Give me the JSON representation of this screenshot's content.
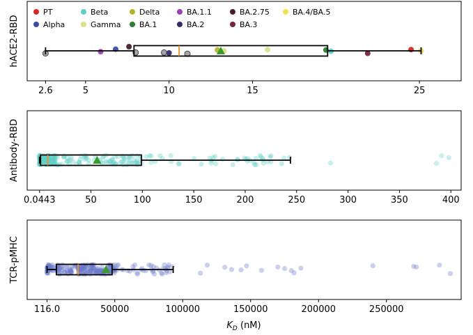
{
  "chart_data": [
    {
      "type": "boxplot-strip",
      "ylabel": "hACE2-RBD",
      "xlim": [
        1.5,
        27.5
      ],
      "xtick_values": [
        2.6,
        5,
        10,
        15,
        25
      ],
      "xtick_labels": [
        "2.6",
        "5",
        "10",
        "15",
        "25"
      ],
      "box": {
        "whisker_low": 2.6,
        "q1": 7.9,
        "median": 10.6,
        "q3": 19.5,
        "whisker_high": 25.1
      },
      "mean": 13.1,
      "legend": {
        "placement": "top-left",
        "entries": [
          {
            "label": "PT",
            "color": "#d62728"
          },
          {
            "label": "Alpha",
            "color": "#3a4fa3"
          },
          {
            "label": "Beta",
            "color": "#5ecfc7"
          },
          {
            "label": "Gamma",
            "color": "#dbe08a"
          },
          {
            "label": "Delta",
            "color": "#b5b22e"
          },
          {
            "label": "BA.1",
            "color": "#2e7d32"
          },
          {
            "label": "BA.1.1",
            "color": "#9c3fb5"
          },
          {
            "label": "BA.2",
            "color": "#3b2a6b"
          },
          {
            "label": "BA.2.75",
            "color": "#4a1f2a"
          },
          {
            "label": "BA.3",
            "color": "#7b2345"
          },
          {
            "label": "BA.4/BA.5",
            "color": "#f0e050"
          }
        ]
      },
      "points": [
        {
          "x": 2.6,
          "dy": 0.3,
          "variant": "Other"
        },
        {
          "x": 5.9,
          "dy": 0.1,
          "variant": "BA.1.1"
        },
        {
          "x": 6.8,
          "dy": -0.2,
          "variant": "Alpha"
        },
        {
          "x": 7.6,
          "dy": -0.5,
          "variant": "BA.2.75"
        },
        {
          "x": 8.0,
          "dy": 0.2,
          "variant": "Other"
        },
        {
          "x": 9.7,
          "dy": 0.2,
          "variant": "Other"
        },
        {
          "x": 10.0,
          "dy": 0.25,
          "variant": "BA.2"
        },
        {
          "x": 11.1,
          "dy": 0.35,
          "variant": "Other"
        },
        {
          "x": 12.9,
          "dy": -0.1,
          "variant": "Delta"
        },
        {
          "x": 13.3,
          "dy": 0.0,
          "variant": "Gamma"
        },
        {
          "x": 15.9,
          "dy": -0.15,
          "variant": "Gamma"
        },
        {
          "x": 19.4,
          "dy": -0.1,
          "variant": "BA.1"
        },
        {
          "x": 19.7,
          "dy": 0.05,
          "variant": "Beta"
        },
        {
          "x": 21.9,
          "dy": 0.3,
          "variant": "BA.3"
        },
        {
          "x": 24.5,
          "dy": -0.15,
          "variant": "PT"
        },
        {
          "x": 25.1,
          "dy": 0.0,
          "variant": "BA.4/BA.5"
        }
      ]
    },
    {
      "type": "boxplot-strip",
      "ylabel": "Antibody-RBD",
      "xlim": [
        -12,
        410
      ],
      "xtick_values": [
        0.0443,
        50,
        100,
        150,
        200,
        250,
        300,
        350,
        400
      ],
      "xtick_labels": [
        "0.0443",
        "50",
        "100",
        "150",
        "200",
        "250",
        "300",
        "350",
        "400"
      ],
      "box": {
        "whisker_low": 0.0443,
        "q1": 1,
        "median": 8,
        "q3": 99,
        "whisker_high": 244
      },
      "mean": 56,
      "point_color": "#5ecfc7",
      "outliers": [
        283,
        386,
        391,
        398
      ]
    },
    {
      "type": "boxplot-strip",
      "ylabel": "TCR-pMHC",
      "xlabel_main": "K",
      "xlabel_sub": "D",
      "xlabel_unit": " (nM)",
      "xlim": [
        -14500,
        305000
      ],
      "xtick_values": [
        116,
        50000,
        100000,
        150000,
        200000,
        250000
      ],
      "xtick_labels": [
        "116.0",
        "50000",
        "100000",
        "150000",
        "200000",
        "250000"
      ],
      "box": {
        "whisker_low": 116,
        "q1": 7000,
        "median": 23000,
        "q3": 48000,
        "whisker_high": 93000
      },
      "mean": 43500,
      "point_color": "#6a78c9",
      "outliers": [
        113000,
        118000,
        131000,
        136000,
        143000,
        147000,
        158000,
        170000,
        175000,
        180000,
        182000,
        187000,
        240000,
        270000,
        272000,
        289000,
        297000
      ]
    }
  ]
}
